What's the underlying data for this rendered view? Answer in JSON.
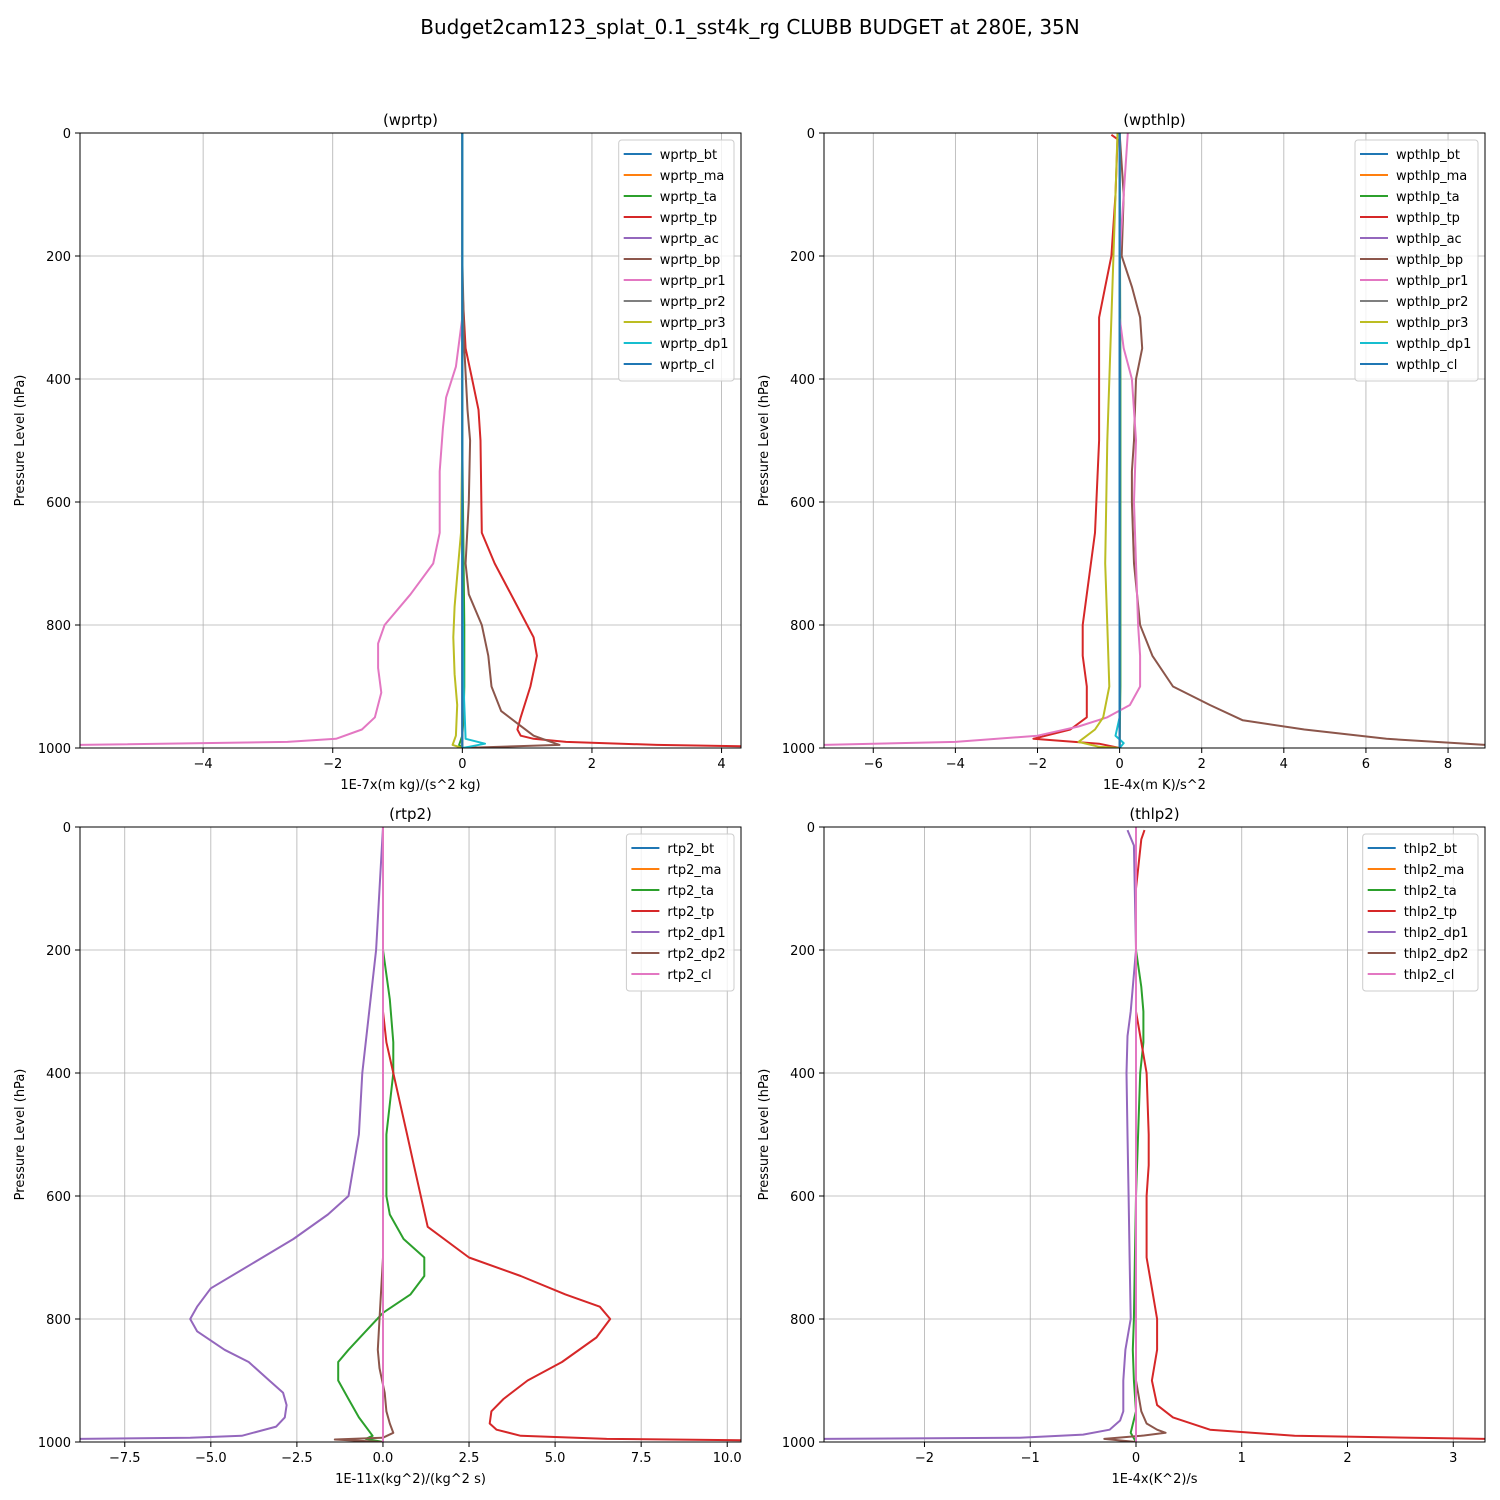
{
  "suptitle": "Budget2cam123_splat_0.1_sst4k_rg CLUBB BUDGET at 280E, 35N",
  "colors": {
    "C0": "#1f77b4",
    "C1": "#ff7f0e",
    "C2": "#2ca02c",
    "C3": "#d62728",
    "C4": "#9467bd",
    "C5": "#8c564b",
    "C6": "#e377c2",
    "C7": "#7f7f7f",
    "C8": "#bcbd22",
    "C9": "#17becf"
  },
  "chart_data": [
    {
      "type": "line",
      "title": "(wprtp)",
      "xlabel": "1E-7x(m kg)/(s^2 kg)",
      "ylabel": "Pressure Level (hPa)",
      "xlim": [
        -5.9,
        4.3
      ],
      "ylim": [
        1000,
        0
      ],
      "xticks": [
        -4,
        -2,
        0,
        2,
        4
      ],
      "xtick_labels": [
        "−4",
        "−2",
        "0",
        "2",
        "4"
      ],
      "yticks": [
        0,
        200,
        400,
        600,
        800,
        1000
      ],
      "ytick_labels": [
        "0",
        "200",
        "400",
        "600",
        "800",
        "1000"
      ],
      "grid": true,
      "legend": "upper right",
      "series": [
        {
          "name": "wprtp_bt",
          "color": "C0",
          "x": [
            0,
            0
          ],
          "y": [
            0,
            1000
          ]
        },
        {
          "name": "wprtp_ma",
          "color": "C1",
          "x": [
            0,
            0
          ],
          "y": [
            0,
            1000
          ]
        },
        {
          "name": "wprtp_ta",
          "color": "C2",
          "x": [
            0,
            0,
            0,
            0.02,
            0.03,
            0.03,
            0.02,
            0,
            -0.05,
            0
          ],
          "y": [
            0,
            300,
            500,
            700,
            800,
            900,
            950,
            980,
            995,
            1000
          ]
        },
        {
          "name": "wprtp_tp",
          "color": "C3",
          "x": [
            0,
            0,
            0.05,
            0.15,
            0.25,
            0.28,
            0.3,
            0.5,
            0.8,
            1.1,
            1.15,
            1.05,
            0.9,
            0.85,
            0.9,
            1.1,
            1.6,
            3.0,
            4.3
          ],
          "y": [
            0,
            250,
            350,
            400,
            450,
            500,
            650,
            700,
            760,
            820,
            850,
            900,
            950,
            970,
            980,
            985,
            990,
            995,
            997
          ]
        },
        {
          "name": "wprtp_ac",
          "color": "C4",
          "x": [
            0,
            0
          ],
          "y": [
            0,
            1000
          ]
        },
        {
          "name": "wprtp_bp",
          "color": "C5",
          "x": [
            0,
            0,
            0.03,
            0.08,
            0.12,
            0.1,
            0.05,
            0.1,
            0.3,
            0.4,
            0.45,
            0.6,
            0.85,
            1.1,
            1.5,
            0
          ],
          "y": [
            0,
            200,
            350,
            450,
            500,
            600,
            700,
            750,
            800,
            850,
            900,
            940,
            960,
            980,
            995,
            1000
          ]
        },
        {
          "name": "wprtp_pr1",
          "color": "C6",
          "x": [
            0,
            0,
            -0.1,
            -0.25,
            -0.3,
            -0.35,
            -0.35,
            -0.35,
            -0.45,
            -0.8,
            -1.2,
            -1.3,
            -1.3,
            -1.25,
            -1.35,
            -1.55,
            -1.95,
            -2.7,
            -5.9
          ],
          "y": [
            0,
            300,
            380,
            430,
            480,
            550,
            600,
            650,
            700,
            750,
            800,
            830,
            870,
            910,
            950,
            970,
            985,
            990,
            995
          ]
        },
        {
          "name": "wprtp_pr2",
          "color": "C7",
          "x": [
            0,
            0
          ],
          "y": [
            0,
            1000
          ]
        },
        {
          "name": "wprtp_pr3",
          "color": "C8",
          "x": [
            0,
            0,
            0,
            -0.02,
            -0.08,
            -0.12,
            -0.14,
            -0.12,
            -0.08,
            -0.1,
            -0.15,
            0
          ],
          "y": [
            0,
            250,
            500,
            650,
            720,
            770,
            820,
            880,
            930,
            980,
            995,
            1000
          ]
        },
        {
          "name": "wprtp_dp1",
          "color": "C9",
          "x": [
            0,
            0,
            0.02,
            0.05,
            0.35,
            0.1,
            0
          ],
          "y": [
            0,
            700,
            900,
            985,
            993,
            998,
            1000
          ]
        },
        {
          "name": "wprtp_cl",
          "color": "C0",
          "x": [
            0,
            0
          ],
          "y": [
            0,
            1000
          ]
        }
      ]
    },
    {
      "type": "line",
      "title": "(wpthlp)",
      "xlabel": "1E-4x(m K)/s^2",
      "ylabel": "Pressure Level (hPa)",
      "xlim": [
        -7.2,
        8.9
      ],
      "ylim": [
        1000,
        0
      ],
      "xticks": [
        -6,
        -4,
        -2,
        0,
        2,
        4,
        6,
        8
      ],
      "xtick_labels": [
        "−6",
        "−4",
        "−2",
        "0",
        "2",
        "4",
        "6",
        "8"
      ],
      "yticks": [
        0,
        200,
        400,
        600,
        800,
        1000
      ],
      "ytick_labels": [
        "0",
        "200",
        "400",
        "600",
        "800",
        "1000"
      ],
      "grid": true,
      "legend": "upper right",
      "series": [
        {
          "name": "wpthlp_bt",
          "color": "C0",
          "x": [
            0,
            0
          ],
          "y": [
            0,
            1000
          ]
        },
        {
          "name": "wpthlp_ma",
          "color": "C1",
          "x": [
            0,
            0
          ],
          "y": [
            0,
            1000
          ]
        },
        {
          "name": "wpthlp_ta",
          "color": "C2",
          "x": [
            0,
            0.02,
            0.02,
            0
          ],
          "y": [
            0,
            400,
            900,
            1000
          ]
        },
        {
          "name": "wpthlp_tp",
          "color": "C3",
          "x": [
            -0.2,
            -0.05,
            -0.1,
            -0.2,
            -0.35,
            -0.5,
            -0.5,
            -0.5,
            -0.6,
            -0.8,
            -0.9,
            -0.9,
            -0.8,
            -0.8,
            -1.2,
            -2.1,
            -0.5,
            0
          ],
          "y": [
            3,
            10,
            100,
            200,
            250,
            300,
            400,
            500,
            650,
            750,
            800,
            850,
            900,
            950,
            970,
            985,
            993,
            1000
          ]
        },
        {
          "name": "wpthlp_ac",
          "color": "C4",
          "x": [
            0,
            0
          ],
          "y": [
            0,
            1000
          ]
        },
        {
          "name": "wpthlp_bp",
          "color": "C5",
          "x": [
            0,
            0.1,
            0.05,
            0.3,
            0.5,
            0.55,
            0.4,
            0.35,
            0.3,
            0.3,
            0.35,
            0.5,
            0.8,
            1.3,
            2.2,
            3.0,
            4.5,
            6.5,
            8.9
          ],
          "y": [
            0,
            100,
            200,
            250,
            300,
            350,
            400,
            500,
            550,
            600,
            700,
            800,
            850,
            900,
            930,
            955,
            970,
            985,
            995
          ]
        },
        {
          "name": "wpthlp_pr1",
          "color": "C6",
          "x": [
            0.2,
            0.1,
            0,
            0,
            0.1,
            0.3,
            0.4,
            0.35,
            0.4,
            0.45,
            0.5,
            0.5,
            0.25,
            -0.3,
            -1,
            -2,
            -4,
            -7.2
          ],
          "y": [
            0,
            100,
            200,
            300,
            350,
            400,
            500,
            600,
            700,
            800,
            850,
            900,
            930,
            950,
            965,
            980,
            990,
            995
          ]
        },
        {
          "name": "wpthlp_pr2",
          "color": "C7",
          "x": [
            0,
            0
          ],
          "y": [
            0,
            1000
          ]
        },
        {
          "name": "wpthlp_pr3",
          "color": "C8",
          "x": [
            -0.05,
            -0.1,
            -0.2,
            -0.3,
            -0.35,
            -0.3,
            -0.25,
            -0.4,
            -0.6,
            -0.9,
            -1.0,
            -0.5,
            0
          ],
          "y": [
            0,
            100,
            300,
            500,
            700,
            800,
            900,
            950,
            970,
            985,
            990,
            998,
            1000
          ]
        },
        {
          "name": "wpthlp_dp1",
          "color": "C9",
          "x": [
            0,
            0,
            -0.1,
            0.1,
            0
          ],
          "y": [
            0,
            950,
            980,
            992,
            1000
          ]
        },
        {
          "name": "wpthlp_cl",
          "color": "C0",
          "x": [
            0,
            0
          ],
          "y": [
            0,
            1000
          ]
        }
      ]
    },
    {
      "type": "line",
      "title": "(rtp2)",
      "xlabel": "1E-11x(kg^2)/(kg^2 s)",
      "ylabel": "Pressure Level (hPa)",
      "xlim": [
        -8.8,
        10.4
      ],
      "ylim": [
        1000,
        0
      ],
      "xticks": [
        -7.5,
        -5.0,
        -2.5,
        0.0,
        2.5,
        5.0,
        7.5,
        10.0
      ],
      "xtick_labels": [
        "−7.5",
        "−5.0",
        "−2.5",
        "0.0",
        "2.5",
        "5.0",
        "7.5",
        "10.0"
      ],
      "yticks": [
        0,
        200,
        400,
        600,
        800,
        1000
      ],
      "ytick_labels": [
        "0",
        "200",
        "400",
        "600",
        "800",
        "1000"
      ],
      "grid": true,
      "legend": "upper right",
      "series": [
        {
          "name": "rtp2_bt",
          "color": "C0",
          "x": [
            0,
            0
          ],
          "y": [
            0,
            1000
          ]
        },
        {
          "name": "rtp2_ma",
          "color": "C1",
          "x": [
            0,
            0
          ],
          "y": [
            0,
            1000
          ]
        },
        {
          "name": "rtp2_ta",
          "color": "C2",
          "x": [
            0,
            0,
            0.2,
            0.3,
            0.3,
            0.1,
            0.1,
            0.2,
            0.6,
            1.2,
            1.2,
            0.8,
            0,
            -0.5,
            -1.0,
            -1.3,
            -1.3,
            -1.0,
            -0.7,
            -0.3,
            -0.5,
            0
          ],
          "y": [
            0,
            200,
            280,
            350,
            400,
            500,
            600,
            630,
            670,
            700,
            730,
            760,
            790,
            820,
            850,
            870,
            900,
            930,
            960,
            990,
            995,
            1000
          ]
        },
        {
          "name": "rtp2_tp",
          "color": "C3",
          "x": [
            0,
            0,
            0.1,
            0.3,
            0.5,
            0.7,
            0.9,
            1.3,
            2.5,
            4.0,
            5.3,
            6.3,
            6.6,
            6.2,
            5.2,
            4.2,
            3.5,
            3.15,
            3.1,
            3.3,
            4.0,
            6.5,
            10.4
          ],
          "y": [
            0,
            300,
            350,
            400,
            450,
            500,
            550,
            650,
            700,
            730,
            760,
            780,
            800,
            830,
            870,
            900,
            930,
            950,
            970,
            980,
            990,
            995,
            997
          ]
        },
        {
          "name": "rtp2_dp1",
          "color": "C4",
          "x": [
            0,
            -0.2,
            -0.4,
            -0.6,
            -0.7,
            -1.0,
            -1.6,
            -2.6,
            -3.8,
            -5.0,
            -5.4,
            -5.6,
            -5.4,
            -4.6,
            -3.9,
            -3.3,
            -2.9,
            -2.8,
            -2.85,
            -3.1,
            -4.1,
            -5.6,
            -8.8
          ],
          "y": [
            0,
            200,
            300,
            400,
            500,
            600,
            630,
            670,
            710,
            750,
            780,
            800,
            820,
            850,
            870,
            900,
            920,
            940,
            960,
            975,
            990,
            993,
            995
          ]
        },
        {
          "name": "rtp2_dp2",
          "color": "C5",
          "x": [
            0,
            0,
            -0.1,
            -0.15,
            -0.1,
            0.05,
            0.1,
            0.2,
            0.3,
            0,
            -1.4,
            0
          ],
          "y": [
            0,
            700,
            800,
            850,
            880,
            920,
            950,
            970,
            985,
            993,
            996,
            1000
          ]
        },
        {
          "name": "rtp2_cl",
          "color": "C6",
          "x": [
            0,
            0
          ],
          "y": [
            0,
            1000
          ]
        }
      ]
    },
    {
      "type": "line",
      "title": "(thlp2)",
      "xlabel": "1E-4x(K^2)/s",
      "ylabel": "Pressure Level (hPa)",
      "xlim": [
        -2.95,
        3.3
      ],
      "ylim": [
        1000,
        0
      ],
      "xticks": [
        -2,
        -1,
        0,
        1,
        2,
        3
      ],
      "xtick_labels": [
        "−2",
        "−1",
        "0",
        "1",
        "2",
        "3"
      ],
      "yticks": [
        0,
        200,
        400,
        600,
        800,
        1000
      ],
      "ytick_labels": [
        "0",
        "200",
        "400",
        "600",
        "800",
        "1000"
      ],
      "grid": true,
      "legend": "upper right",
      "series": [
        {
          "name": "thlp2_bt",
          "color": "C0",
          "x": [
            0,
            0
          ],
          "y": [
            0,
            1000
          ]
        },
        {
          "name": "thlp2_ma",
          "color": "C1",
          "x": [
            0,
            0
          ],
          "y": [
            0,
            1000
          ]
        },
        {
          "name": "thlp2_ta",
          "color": "C2",
          "x": [
            0,
            0,
            0.05,
            0.07,
            0.07,
            0.04,
            0.02,
            0,
            -0.01,
            -0.02,
            -0.03,
            -0.02,
            0,
            -0.05,
            0
          ],
          "y": [
            0,
            200,
            260,
            300,
            350,
            400,
            500,
            600,
            700,
            800,
            850,
            900,
            950,
            985,
            1000
          ]
        },
        {
          "name": "thlp2_tp",
          "color": "C3",
          "x": [
            0.08,
            0.05,
            0,
            0,
            0,
            0.05,
            0.1,
            0.12,
            0.12,
            0.1,
            0.1,
            0.15,
            0.2,
            0.2,
            0.15,
            0.2,
            0.35,
            0.7,
            1.5,
            3.3
          ],
          "y": [
            5,
            20,
            100,
            200,
            300,
            350,
            400,
            500,
            550,
            600,
            700,
            750,
            800,
            850,
            900,
            940,
            960,
            980,
            990,
            995
          ]
        },
        {
          "name": "thlp2_dp1",
          "color": "C4",
          "x": [
            -0.08,
            -0.02,
            0,
            -0.05,
            -0.08,
            -0.09,
            -0.08,
            -0.07,
            -0.06,
            -0.05,
            -0.1,
            -0.12,
            -0.12,
            -0.12,
            -0.15,
            -0.25,
            -0.5,
            -1.1,
            -2.95
          ],
          "y": [
            5,
            30,
            200,
            300,
            340,
            400,
            500,
            600,
            700,
            800,
            850,
            900,
            930,
            950,
            965,
            980,
            988,
            993,
            995
          ]
        },
        {
          "name": "thlp2_dp2",
          "color": "C5",
          "x": [
            0,
            0,
            0.05,
            0.1,
            0.2,
            0.28,
            0.05,
            -0.3,
            0
          ],
          "y": [
            0,
            900,
            950,
            970,
            980,
            985,
            990,
            995,
            1000
          ]
        },
        {
          "name": "thlp2_cl",
          "color": "C6",
          "x": [
            0,
            0
          ],
          "y": [
            0,
            1000
          ]
        }
      ]
    }
  ]
}
